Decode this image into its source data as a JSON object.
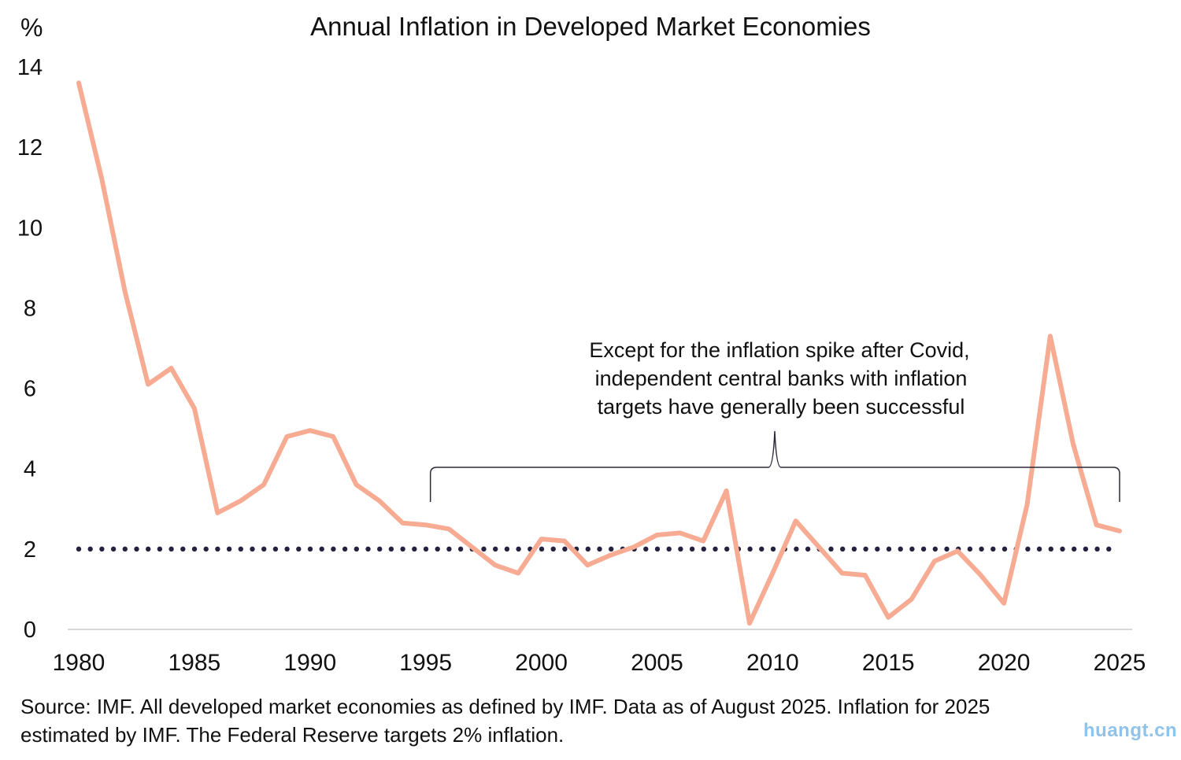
{
  "chart_data": {
    "type": "line",
    "title": "Annual Inflation in Developed Market Economies",
    "ylabel": "%",
    "xlabel": "",
    "xlim": [
      1980,
      2025
    ],
    "ylim": [
      0,
      14
    ],
    "y_ticks": [
      0,
      2,
      4,
      6,
      8,
      10,
      12,
      14
    ],
    "x_ticks": [
      1980,
      1985,
      1990,
      1995,
      2000,
      2005,
      2010,
      2015,
      2020,
      2025
    ],
    "grid": false,
    "series": [
      {
        "name": "Annual inflation",
        "color": "#f7ab92",
        "x": [
          1980,
          1981,
          1982,
          1983,
          1984,
          1985,
          1986,
          1987,
          1988,
          1989,
          1990,
          1991,
          1992,
          1993,
          1994,
          1995,
          1996,
          1997,
          1998,
          1999,
          2000,
          2001,
          2002,
          2003,
          2004,
          2005,
          2006,
          2007,
          2008,
          2009,
          2010,
          2011,
          2012,
          2013,
          2014,
          2015,
          2016,
          2017,
          2018,
          2019,
          2020,
          2021,
          2022,
          2023,
          2024,
          2025
        ],
        "values": [
          13.6,
          11.2,
          8.4,
          6.1,
          6.5,
          5.5,
          2.9,
          3.2,
          3.6,
          4.8,
          4.95,
          4.8,
          3.6,
          3.2,
          2.65,
          2.6,
          2.5,
          2.05,
          1.6,
          1.4,
          2.25,
          2.2,
          1.6,
          1.85,
          2.05,
          2.35,
          2.4,
          2.2,
          3.45,
          0.15,
          1.4,
          2.7,
          2.05,
          1.4,
          1.35,
          0.3,
          0.75,
          1.7,
          1.95,
          1.35,
          0.65,
          3.1,
          7.3,
          4.6,
          2.6,
          2.45
        ]
      },
      {
        "name": "Federal Reserve 2% target",
        "color": "#24203f",
        "style": "dotted",
        "x": [
          1980,
          2025
        ],
        "values": [
          2,
          2
        ]
      }
    ],
    "annotation": {
      "lines": [
        "Except for the inflation spike after Covid,",
        "independent central banks with inflation",
        "targets have generally been successful"
      ],
      "bracket_from_year": 1995,
      "bracket_to_year": 2025
    }
  },
  "source": {
    "line1": "Source: IMF. All developed market economies as defined by IMF. Data as of August 2025. Inflation for 2025",
    "line2": "estimated by IMF. The Federal Reserve targets 2% inflation."
  },
  "watermark": "huangt.cn"
}
